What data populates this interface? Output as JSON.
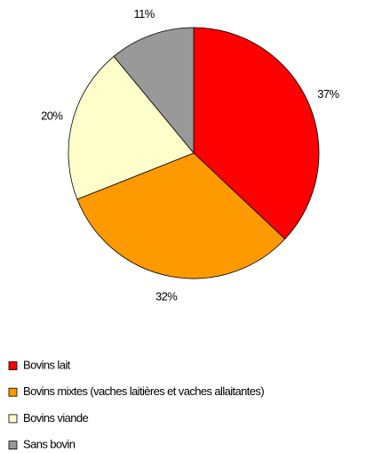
{
  "chart_data": {
    "type": "pie",
    "categories": [
      "Bovins lait",
      "Bovins mixtes (vaches laitières et vaches allaitantes)",
      "Bovins viande",
      "Sans bovin"
    ],
    "values": [
      37,
      32,
      20,
      11
    ],
    "value_labels": [
      "37%",
      "32%",
      "20%",
      "11%"
    ],
    "colors": [
      "#ff0000",
      "#ff9900",
      "#ffffcc",
      "#999999"
    ],
    "legend": "bottom"
  }
}
